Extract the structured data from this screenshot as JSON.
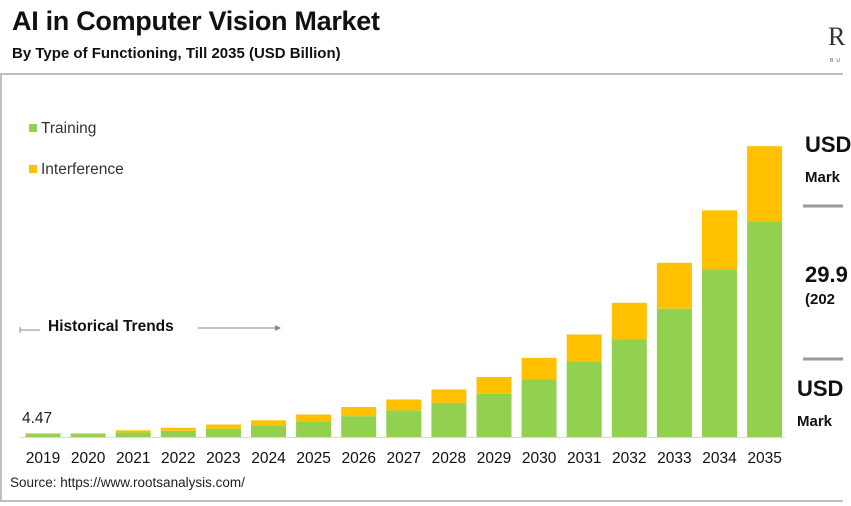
{
  "header": {
    "title": "AI in Computer Vision Market",
    "subtitle": "By Type of Functioning, Till 2035 (USD Billion)",
    "logo": "R",
    "logo_sub": "BU"
  },
  "legend": [
    {
      "label": "Training",
      "color": "#92d050"
    },
    {
      "label": "Interference",
      "color": "#ffc000"
    }
  ],
  "annotation": {
    "historical_trends": "Historical Trends",
    "first_value": "4.47"
  },
  "side_panel": {
    "line1": "USD",
    "line2": "Mark",
    "line3": "29.9",
    "line4": "(202",
    "line5": "USD",
    "line6": "Mark"
  },
  "source": "Source: https://www.rootsanalysis.com/",
  "chart_data": {
    "type": "bar",
    "stacked": true,
    "title": "AI in Computer Vision Market",
    "xlabel": "",
    "ylabel": "",
    "ylim": [
      0,
      360
    ],
    "grid": false,
    "legend_position": "top-left",
    "categories": [
      "2019",
      "2020",
      "2021",
      "2022",
      "2023",
      "2024",
      "2025",
      "2026",
      "2027",
      "2028",
      "2029",
      "2030",
      "2031",
      "2032",
      "2033",
      "2034",
      "2035"
    ],
    "series": [
      {
        "name": "Training",
        "color": "#92d050",
        "values": [
          3.5,
          3.5,
          5.5,
          7.5,
          10,
          14,
          19,
          25,
          32,
          41,
          52,
          69,
          90,
          117,
          154,
          201,
          259
        ]
      },
      {
        "name": "Interference",
        "color": "#ffc000",
        "values": [
          0.97,
          1.0,
          2.5,
          3.5,
          5,
          6,
          8,
          11,
          13,
          16,
          20,
          26,
          33,
          44,
          55,
          71,
          90
        ]
      }
    ]
  }
}
